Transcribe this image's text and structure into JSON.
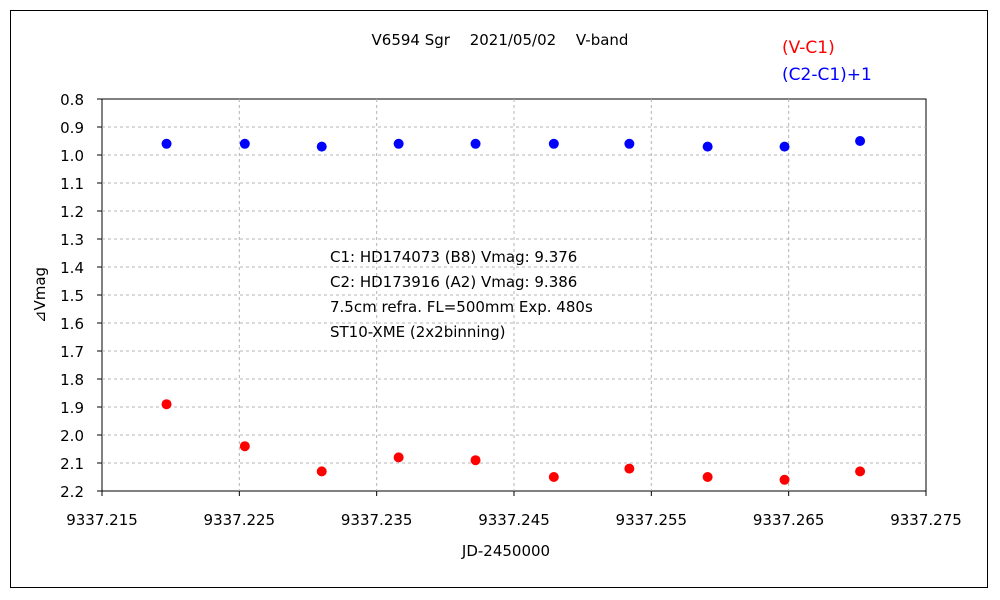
{
  "chart_data": {
    "type": "scatter",
    "title": "V6594 Sgr　 2021/05/02　 V-band",
    "xlabel": "JD-2450000",
    "ylabel": "⊿Vmag",
    "xlim": [
      9337.215,
      9337.275
    ],
    "ylim": [
      0.8,
      2.2
    ],
    "y_inverted": true,
    "x_ticks": [
      "9337.215",
      "9337.225",
      "9337.235",
      "9337.245",
      "9337.255",
      "9337.265",
      "9337.275"
    ],
    "y_ticks": [
      "0.8",
      "0.9",
      "1.0",
      "1.1",
      "1.2",
      "1.3",
      "1.4",
      "1.5",
      "1.6",
      "1.7",
      "1.8",
      "1.9",
      "2.0",
      "2.1",
      "2.2"
    ],
    "grid": true,
    "legend_position": "top-right",
    "annotations": [
      "C1: HD174073 (B8) Vmag: 9.376",
      "C2: HD173916 (A2) Vmag: 9.386",
      "7.5cm refra. FL=500mm  Exp. 480s",
      "ST10-XME (2x2binning)"
    ],
    "series": [
      {
        "name": "(V-C1)",
        "color": "#ff0000",
        "x": [
          9337.2197,
          9337.2254,
          9337.231,
          9337.2366,
          9337.2422,
          9337.2479,
          9337.2534,
          9337.2591,
          9337.2647,
          9337.2702
        ],
        "y": [
          1.89,
          2.04,
          2.13,
          2.08,
          2.09,
          2.15,
          2.12,
          2.15,
          2.16,
          2.13
        ]
      },
      {
        "name": "(C2-C1)+1",
        "color": "#0000ff",
        "x": [
          9337.2197,
          9337.2254,
          9337.231,
          9337.2366,
          9337.2422,
          9337.2479,
          9337.2534,
          9337.2591,
          9337.2647,
          9337.2702
        ],
        "y": [
          0.96,
          0.96,
          0.97,
          0.96,
          0.96,
          0.96,
          0.96,
          0.97,
          0.97,
          0.95
        ]
      }
    ]
  }
}
